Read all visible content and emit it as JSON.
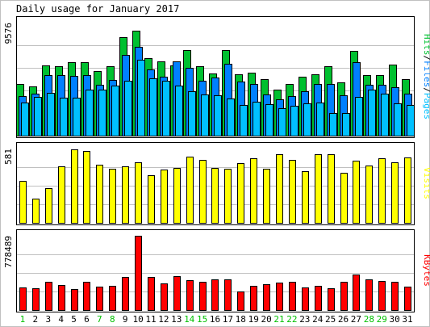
{
  "chart_data": {
    "type": "bar",
    "title": "Daily usage for January 2017",
    "days": [
      "1",
      "2",
      "3",
      "4",
      "5",
      "6",
      "7",
      "8",
      "9",
      "10",
      "11",
      "12",
      "13",
      "14",
      "15",
      "16",
      "17",
      "18",
      "19",
      "20",
      "21",
      "22",
      "23",
      "24",
      "25",
      "26",
      "27",
      "28",
      "29",
      "30",
      "31"
    ],
    "weekend_days": [
      "1",
      "7",
      "8",
      "14",
      "15",
      "21",
      "22",
      "28",
      "29"
    ],
    "panels": [
      {
        "id": "hits",
        "max_label": "9576",
        "ymax": 9576,
        "legend": [
          "Pages",
          "Files",
          "Hits"
        ],
        "series": [
          {
            "name": "Hits",
            "color": "#00c030",
            "values": [
              4364,
              4178,
              5941,
              5883,
              6256,
              6256,
              5474,
              5861,
              8355,
              8860,
              6576,
              6264,
              5941,
              7280,
              5894,
              5240,
              7280,
              5169,
              5323,
              4807,
              3911,
              4364,
              5014,
              5216,
              5880,
              4541,
              7179,
              5101,
              5101,
              6013,
              4813
            ]
          },
          {
            "name": "Files",
            "color": "#0080ff",
            "values": [
              3318,
              3579,
              5138,
              5101,
              5076,
              5101,
              4307,
              4745,
              6820,
              7543,
              5595,
              5014,
              6322,
              5720,
              4664,
              4929,
              6103,
              4552,
              4364,
              3490,
              3053,
              3343,
              3742,
              4364,
              4364,
              3391,
              6256,
              4292,
              4292,
              4081,
              3579
            ]
          },
          {
            "name": "Pages",
            "color": "#00c0ff",
            "values": [
              2805,
              3253,
              3602,
              3227,
              3227,
              3912,
              3890,
              4225,
              4657,
              6446,
              4849,
              4625,
              4245,
              3742,
              3455,
              3417,
              3114,
              2595,
              2863,
              2680,
              2344,
              2540,
              2727,
              2804,
              1907,
              1908,
              3281,
              3914,
              3589,
              2748,
              2595
            ]
          }
        ]
      },
      {
        "id": "visits",
        "max_label": "581",
        "ymax": 581,
        "legend": [
          "Visits"
        ],
        "series": [
          {
            "name": "Visits",
            "color": "#ffff00",
            "values": [
              330,
              190,
              270,
              445,
              575,
              565,
              455,
              425,
              445,
              475,
              370,
              415,
              430,
              515,
              495,
              430,
              425,
              465,
              505,
              425,
              535,
              495,
              405,
              535,
              535,
              390,
              485,
              450,
              505,
              475,
              510
            ]
          }
        ]
      },
      {
        "id": "kbytes",
        "max_label": "778489",
        "ymax": 778489,
        "legend": [
          "KBytes"
        ],
        "series": [
          {
            "name": "KBytes",
            "color": "#ff0000",
            "values": [
              238130,
              232640,
              300000,
              265000,
              224000,
              292000,
              244000,
              257000,
              343000,
              778489,
              346000,
              280000,
              358000,
              312000,
              300000,
              323000,
              323000,
              193000,
              251000,
              270000,
              289000,
              300000,
              235000,
              251000,
              232000,
              299000,
              374000,
              323000,
              305000,
              297000,
              245000
            ]
          }
        ]
      }
    ],
    "colors": {
      "grid": "#c0c0c0",
      "panel_border": "#000000",
      "frame": "#c0c0c0",
      "weekday_label": "#000000",
      "weekend_label": "#00c000",
      "legend_pages": "#00c0ff",
      "legend_files": "#0080ff",
      "legend_hits": "#00c030",
      "legend_visits": "#ffff00",
      "legend_kbytes": "#ff0000"
    }
  }
}
